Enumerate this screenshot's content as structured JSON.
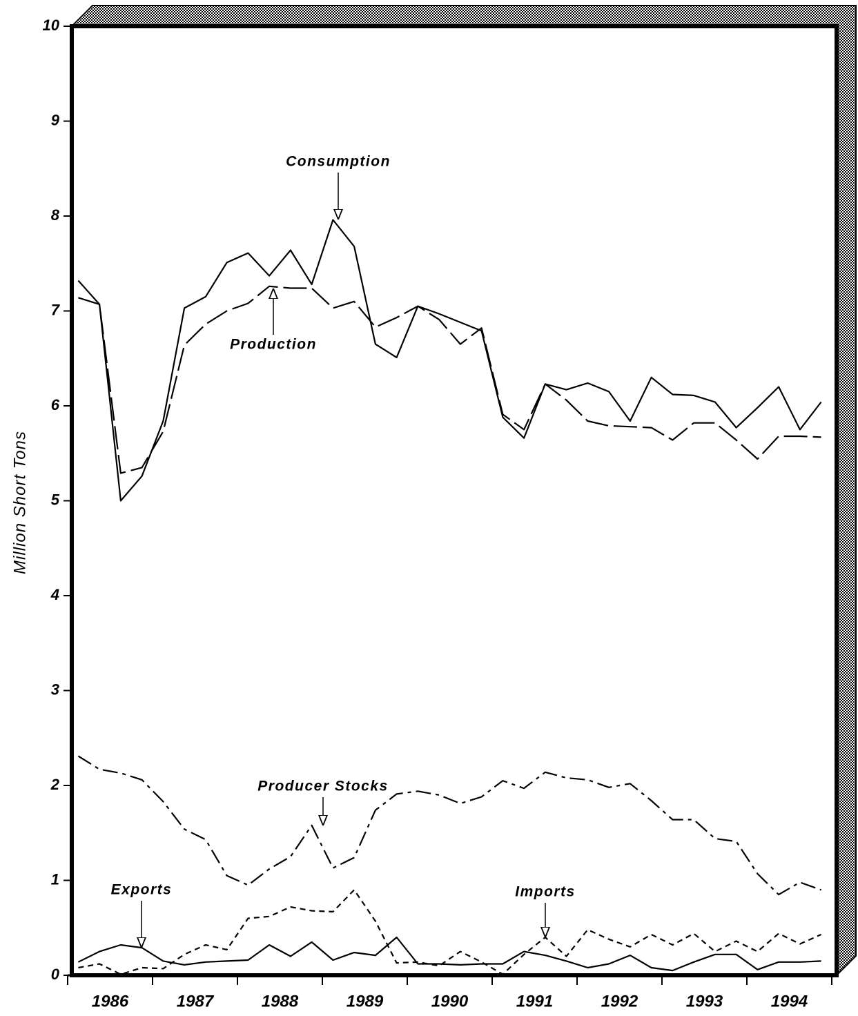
{
  "chart_data": {
    "type": "line",
    "y_label": "Million Short Tons",
    "x": [
      1986.125,
      1986.375,
      1986.625,
      1986.875,
      1987.125,
      1987.375,
      1987.625,
      1987.875,
      1988.125,
      1988.375,
      1988.625,
      1988.875,
      1989.125,
      1989.375,
      1989.625,
      1989.875,
      1990.125,
      1990.375,
      1990.625,
      1990.875,
      1991.125,
      1991.375,
      1991.625,
      1991.875,
      1992.125,
      1992.375,
      1992.625,
      1992.875,
      1993.125,
      1993.375,
      1993.625,
      1993.875,
      1994.125,
      1994.375,
      1994.625,
      1994.875
    ],
    "xlim": [
      1986,
      1995
    ],
    "xticks": [
      1986,
      1987,
      1988,
      1989,
      1990,
      1991,
      1992,
      1993,
      1994,
      1995
    ],
    "year_labels": [
      "1986",
      "1987",
      "1988",
      "1989",
      "1990",
      "1991",
      "1992",
      "1993",
      "1994"
    ],
    "ylim": [
      0,
      10
    ],
    "yticks": [
      0,
      1,
      2,
      3,
      4,
      5,
      6,
      7,
      8,
      9,
      10
    ],
    "series": [
      {
        "name": "Consumption",
        "color": "#000000",
        "line_style": "solid",
        "values": [
          7.32,
          7.07,
          5.0,
          5.26,
          5.84,
          7.03,
          7.15,
          7.51,
          7.61,
          7.37,
          7.64,
          7.28,
          7.96,
          7.68,
          6.65,
          6.51,
          7.05,
          6.97,
          6.88,
          6.79,
          5.88,
          5.66,
          6.23,
          6.17,
          6.24,
          6.15,
          5.84,
          6.3,
          6.12,
          6.11,
          6.04,
          5.77,
          5.98,
          6.2,
          5.75,
          6.04
        ]
      },
      {
        "name": "Production",
        "color": "#000000",
        "line_style": "dashed",
        "values": [
          7.14,
          7.07,
          5.29,
          5.35,
          5.73,
          6.64,
          6.86,
          7.0,
          7.08,
          7.26,
          7.24,
          7.24,
          7.03,
          7.1,
          6.83,
          6.93,
          7.05,
          6.91,
          6.65,
          6.82,
          5.91,
          5.75,
          6.23,
          6.06,
          5.84,
          5.79,
          5.78,
          5.77,
          5.64,
          5.82,
          5.82,
          5.64,
          5.44,
          5.68,
          5.68,
          5.67
        ]
      },
      {
        "name": "Producer Stocks",
        "color": "#000000",
        "line_style": "dash-dot",
        "values": [
          2.31,
          2.17,
          2.13,
          2.06,
          1.83,
          1.54,
          1.43,
          1.05,
          0.95,
          1.12,
          1.25,
          1.58,
          1.13,
          1.24,
          1.74,
          1.91,
          1.94,
          1.9,
          1.81,
          1.88,
          2.05,
          1.97,
          2.14,
          2.08,
          2.06,
          1.98,
          2.02,
          1.84,
          1.64,
          1.64,
          1.44,
          1.41,
          1.07,
          0.85,
          0.98,
          0.9
        ]
      },
      {
        "name": "Exports",
        "color": "#000000",
        "line_style": "solid",
        "values": [
          0.14,
          0.25,
          0.32,
          0.29,
          0.15,
          0.11,
          0.14,
          0.15,
          0.16,
          0.32,
          0.2,
          0.35,
          0.16,
          0.24,
          0.21,
          0.4,
          0.12,
          0.12,
          0.11,
          0.12,
          0.12,
          0.25,
          0.21,
          0.15,
          0.08,
          0.12,
          0.21,
          0.08,
          0.05,
          0.14,
          0.22,
          0.22,
          0.06,
          0.14,
          0.14,
          0.15
        ]
      },
      {
        "name": "Imports",
        "color": "#000000",
        "line_style": "dotted",
        "values": [
          0.08,
          0.12,
          0.01,
          0.08,
          0.07,
          0.22,
          0.32,
          0.27,
          0.6,
          0.62,
          0.72,
          0.68,
          0.67,
          0.9,
          0.57,
          0.13,
          0.14,
          0.1,
          0.25,
          0.14,
          0.01,
          0.22,
          0.4,
          0.2,
          0.48,
          0.38,
          0.3,
          0.43,
          0.32,
          0.44,
          0.25,
          0.36,
          0.25,
          0.44,
          0.33,
          0.43
        ]
      }
    ]
  }
}
